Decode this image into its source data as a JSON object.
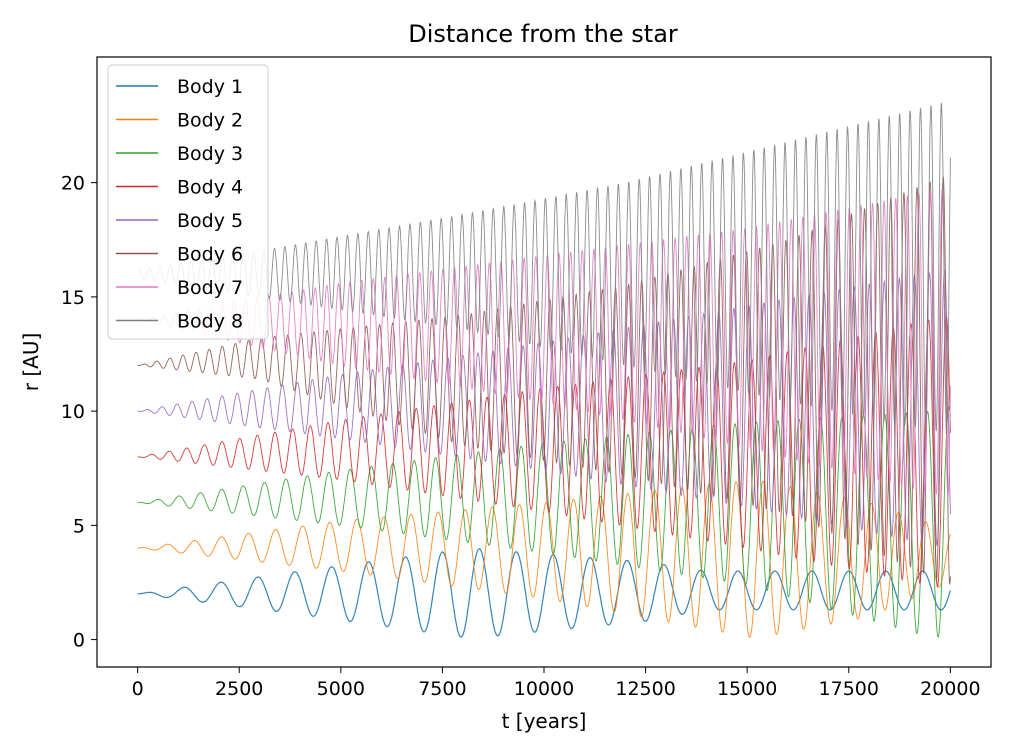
{
  "chart_data": {
    "type": "line",
    "title": "Distance from the star",
    "xlabel": "t [years]",
    "ylabel": "r [AU]",
    "xlim": [
      -1000,
      21000
    ],
    "ylim": [
      -1.2,
      25.5
    ],
    "xticks": [
      0,
      2500,
      5000,
      7500,
      10000,
      12500,
      15000,
      17500,
      20000
    ],
    "yticks": [
      0,
      5,
      10,
      15,
      20
    ],
    "legend_position": "upper left",
    "grid": false,
    "series": [
      {
        "name": "Body 1",
        "color": "#1f77b4",
        "start_r": 2,
        "minmax": [
          [
            0,
            2,
            2
          ],
          [
            4000,
            1.1,
            3.0
          ],
          [
            8200,
            0.05,
            4.0
          ],
          [
            12500,
            0.8,
            3.4
          ],
          [
            14000,
            1.3,
            3.0
          ]
        ]
      },
      {
        "name": "Body 2",
        "color": "#ff7f0e",
        "start_r": 4,
        "minmax": [
          [
            0,
            4,
            4
          ],
          [
            5000,
            3.0,
            5.2
          ],
          [
            10000,
            1.8,
            6.0
          ],
          [
            15200,
            0.05,
            7.0
          ],
          [
            18000,
            1.0,
            6.0
          ],
          [
            20000,
            2.5,
            4.8
          ]
        ]
      },
      {
        "name": "Body 3",
        "color": "#2ca02c",
        "start_r": 6,
        "minmax": [
          [
            0,
            6,
            6
          ],
          [
            5000,
            5.0,
            7.4
          ],
          [
            10000,
            3.8,
            8.6
          ],
          [
            15000,
            2.4,
            9.5
          ],
          [
            19600,
            0.05,
            10.0
          ],
          [
            20000,
            0.3,
            10.2
          ]
        ]
      },
      {
        "name": "Body 4",
        "color": "#d62728",
        "start_r": 8,
        "minmax": [
          [
            0,
            8,
            8
          ],
          [
            5000,
            7.0,
            9.6
          ],
          [
            10000,
            5.6,
            11.0
          ],
          [
            15000,
            4.0,
            12.2
          ],
          [
            20000,
            2.2,
            14.2
          ]
        ]
      },
      {
        "name": "Body 5",
        "color": "#9467bd",
        "start_r": 10,
        "minmax": [
          [
            0,
            10,
            10
          ],
          [
            5000,
            8.8,
            11.6
          ],
          [
            10000,
            7.4,
            13.0
          ],
          [
            15000,
            5.8,
            14.6
          ],
          [
            20000,
            4.0,
            16.2
          ]
        ]
      },
      {
        "name": "Body 6",
        "color": "#8c564b",
        "start_r": 12,
        "minmax": [
          [
            0,
            12,
            12
          ],
          [
            3000,
            11.4,
            13.2
          ],
          [
            8000,
            8.5,
            14.2
          ],
          [
            12000,
            7.2,
            15.5
          ],
          [
            16000,
            5.5,
            17.5
          ],
          [
            20000,
            2.4,
            20.4
          ]
        ]
      },
      {
        "name": "Body 7",
        "color": "#e377c2",
        "start_r": 14,
        "minmax": [
          [
            0,
            14,
            14
          ],
          [
            5000,
            12.0,
            15.6
          ],
          [
            10000,
            10.4,
            16.8
          ],
          [
            15000,
            8.4,
            18.0
          ],
          [
            20000,
            6.2,
            19.8
          ]
        ]
      },
      {
        "name": "Body 8",
        "color": "#7f7f7f",
        "start_r": 16,
        "minmax": [
          [
            0,
            15.8,
            16.2
          ],
          [
            3000,
            15.0,
            17.0
          ],
          [
            8000,
            13.6,
            18.6
          ],
          [
            12000,
            12.0,
            20.0
          ],
          [
            16000,
            10.4,
            21.8
          ],
          [
            20000,
            9.0,
            23.6
          ]
        ]
      }
    ]
  }
}
